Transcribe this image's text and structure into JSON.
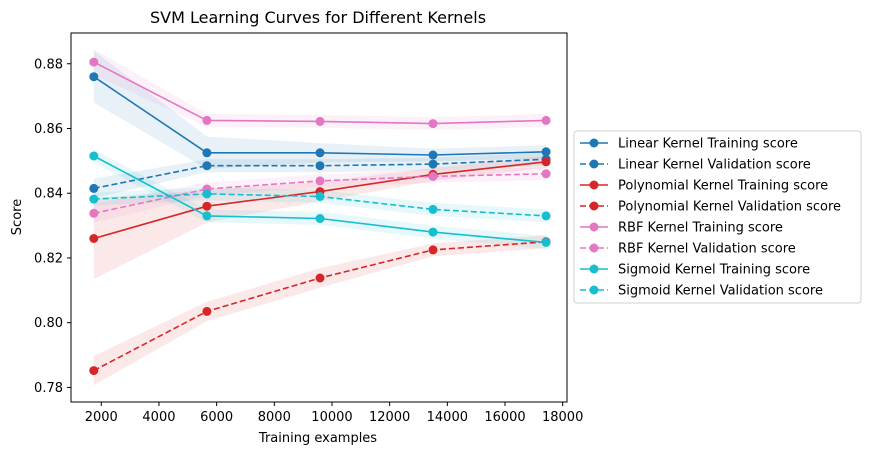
{
  "chart_data": {
    "type": "line",
    "title": "SVM Learning Curves for Different Kernels",
    "xlabel": "Training examples",
    "ylabel": "Score",
    "xlim": [
      950,
      18150
    ],
    "ylim": [
      0.7755,
      0.8895
    ],
    "xticks": [
      2000,
      4000,
      6000,
      8000,
      10000,
      12000,
      14000,
      16000,
      18000
    ],
    "yticks": [
      0.78,
      0.8,
      0.82,
      0.84,
      0.86,
      0.88
    ],
    "grid": false,
    "legend_position": "outside-right",
    "x": [
      1742,
      5662,
      9583,
      13503,
      17424
    ],
    "series": [
      {
        "name": "Linear Kernel Training score",
        "color": "#1f77b4",
        "style": "solid",
        "values": [
          0.876,
          0.8525,
          0.8525,
          0.8518,
          0.8528
        ],
        "band": [
          0.008,
          0.005,
          0.003,
          0.002,
          0.002
        ]
      },
      {
        "name": "Linear Kernel Validation score",
        "color": "#1f77b4",
        "style": "dashed",
        "values": [
          0.8415,
          0.8485,
          0.8485,
          0.849,
          0.8505
        ],
        "band": [
          0.003,
          0.002,
          0.002,
          0.002,
          0.002
        ]
      },
      {
        "name": "Polynomial Kernel Training score",
        "color": "#d62728",
        "style": "solid",
        "values": [
          0.826,
          0.836,
          0.8405,
          0.8458,
          0.8497
        ],
        "band": [
          0.0125,
          0.005,
          0.003,
          0.002,
          0.0018
        ]
      },
      {
        "name": "Polynomial Kernel Validation score",
        "color": "#d62728",
        "style": "dashed",
        "values": [
          0.7852,
          0.8035,
          0.8138,
          0.8225,
          0.825
        ],
        "band": [
          0.0045,
          0.003,
          0.003,
          0.002,
          0.002
        ]
      },
      {
        "name": "RBF Kernel Training score",
        "color": "#e377c2",
        "style": "solid",
        "values": [
          0.8805,
          0.8625,
          0.8622,
          0.8615,
          0.8625
        ],
        "band": [
          0.004,
          0.002,
          0.002,
          0.002,
          0.002
        ]
      },
      {
        "name": "RBF Kernel Validation score",
        "color": "#e377c2",
        "style": "dashed",
        "values": [
          0.8338,
          0.8413,
          0.8438,
          0.8452,
          0.846
        ],
        "band": [
          0.003,
          0.002,
          0.002,
          0.002,
          0.002
        ]
      },
      {
        "name": "Sigmoid Kernel Training score",
        "color": "#17becf",
        "style": "solid",
        "values": [
          0.8515,
          0.833,
          0.8322,
          0.828,
          0.8248
        ],
        "band": [
          0.002,
          0.002,
          0.002,
          0.002,
          0.002
        ]
      },
      {
        "name": "Sigmoid Kernel Validation score",
        "color": "#17becf",
        "style": "dashed",
        "values": [
          0.8382,
          0.8398,
          0.839,
          0.835,
          0.833
        ],
        "band": [
          0.002,
          0.002,
          0.002,
          0.002,
          0.002
        ]
      }
    ]
  }
}
